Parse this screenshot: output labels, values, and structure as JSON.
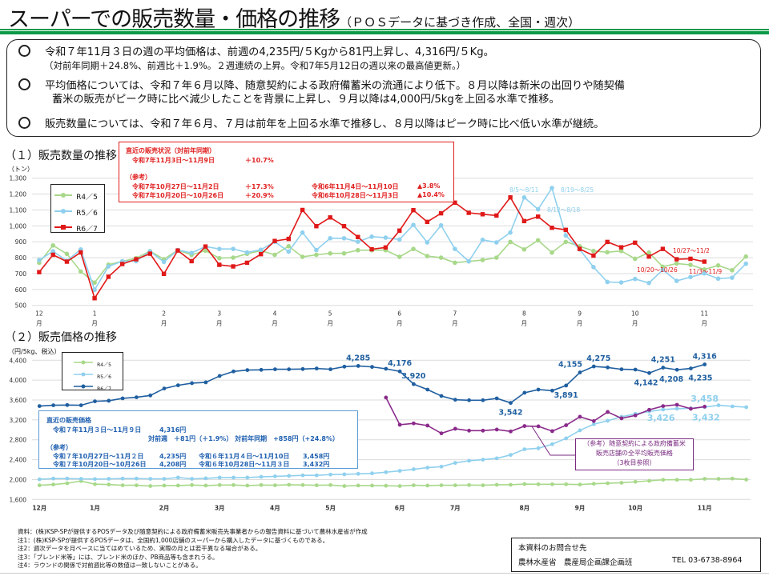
{
  "header": {
    "title": "スーパーでの販売数量・価格の推移",
    "subtitle": "（ＰＯＳデータに基づき作成、全国・週次）",
    "accent_color": "#0b9a48"
  },
  "summary": {
    "bullets": [
      {
        "lines": [
          "令和７年11月３日の週の平均価格は、前週の4,235円/５Kgから81円上昇し、4,316円/５Kg。",
          "（対前年同期＋24.8%、前週比＋1.9%。２週連続の上昇。令和7年5月12日の週以来の最高値更新。）"
        ]
      },
      {
        "lines": [
          "平均価格については、令和７年６月以降、随意契約による政府備蓄米の流通により低下。８月以降は新米の出回りや随契備",
          "蓄米の販売がピーク時に比べ減少したことを背景に上昇し、９月以降は4,000円/5kgを上回る水準で推移。"
        ]
      },
      {
        "lines": [
          "販売数量については、令和７年６月、７月は前年を上回る水準で推移し、８月以降はピーク時に比べ低い水準が継続。"
        ]
      }
    ]
  },
  "section1": {
    "heading": "（１）販売数量の推移",
    "unit": "（トン）",
    "status_box": {
      "title": "直近の販売状況（対前年同期）",
      "latest_period": "令和7年11月3日～11月9日",
      "latest_value": "＋10.7%",
      "ref_label": "（参考）",
      "refs": [
        {
          "period": "令和7年10月27日～11月2日",
          "value": "＋17.3%",
          "prev_period": "令和6年11月4日～11月10日",
          "prev_value": "▲3.8%"
        },
        {
          "period": "令和7年10月20日～10月26日",
          "value": "＋20.9%",
          "prev_period": "令和6年10月28日～11月3日",
          "prev_value": "▲10.4%"
        }
      ]
    }
  },
  "section2": {
    "heading": "（２）販売価格の推移",
    "unit": "（円/5kg、税込）",
    "price_box": {
      "title": "直近の販売価格",
      "latest_period": "令和７年11月３日～11月９日",
      "latest_value": "4,316円",
      "change": "対前週　＋81円（＋1.9%）  対前年同期　+858円（+24.8%）",
      "ref_label": "（参考）",
      "refs": [
        {
          "period": "令和７年10月27日～11月２日",
          "value": "4,235円",
          "prev_period": "令和６年11月４日～11月10日",
          "prev_value": "3,458円"
        },
        {
          "period": "令和７年10月20日～10月26日",
          "value": "4,208円",
          "prev_period": "令和６年10月28日～11月３日",
          "prev_value": "3,432円"
        }
      ]
    },
    "stockpile_note": [
      "（参考）随意契約による政府備蓄米",
      "販売店舗の全平均販売価格",
      "（3枚目参照）"
    ]
  },
  "chart_data": [
    {
      "type": "line",
      "ylabel": "（トン）",
      "ylim": [
        500,
        1300
      ],
      "yticks": [
        500,
        600,
        700,
        800,
        900,
        1000,
        1100,
        1200,
        1300
      ],
      "grid": true,
      "legend_position": "top-left",
      "month_ticks": [
        {
          "index": 0,
          "label": "12月"
        },
        {
          "index": 4,
          "label": "1月"
        },
        {
          "index": 9,
          "label": "2月"
        },
        {
          "index": 13,
          "label": "3月"
        },
        {
          "index": 17,
          "label": "4月"
        },
        {
          "index": 21,
          "label": "5月"
        },
        {
          "index": 26,
          "label": "6月"
        },
        {
          "index": 30,
          "label": "7月"
        },
        {
          "index": 35,
          "label": "8月"
        },
        {
          "index": 39,
          "label": "9月"
        },
        {
          "index": 43,
          "label": "10月"
        },
        {
          "index": 48,
          "label": "11月"
        }
      ],
      "series": [
        {
          "name": "R4／5",
          "color": "#a8d88a",
          "marker": "circle",
          "start": 0,
          "values": [
            768,
            877,
            824,
            713,
            643,
            756,
            777,
            797,
            841,
            790,
            847,
            818,
            844,
            797,
            800,
            824,
            844,
            818,
            872,
            805,
            818,
            827,
            827,
            847,
            847,
            847,
            805,
            855,
            810,
            800,
            768,
            777,
            785,
            800,
            899,
            852,
            909,
            832,
            899,
            872,
            842,
            834,
            842,
            793,
            832,
            743,
            763,
            755,
            726,
            751,
            721,
            807
          ]
        },
        {
          "name": "R5／6",
          "color": "#8fd0ee",
          "marker": "circle",
          "start": 0,
          "values": [
            785,
            840,
            780,
            852,
            598,
            745,
            778,
            778,
            840,
            773,
            848,
            830,
            870,
            855,
            855,
            833,
            850,
            900,
            838,
            958,
            848,
            922,
            922,
            900,
            932,
            926,
            914,
            1006,
            896,
            1003,
            855,
            777,
            912,
            896,
            958,
            1179,
            1104,
            1238,
            939,
            852,
            741,
            647,
            644,
            666,
            641,
            723,
            654,
            678,
            701,
            668,
            674,
            762
          ]
        },
        {
          "name": "R6／7",
          "color": "#e01818",
          "marker": "square",
          "start": 0,
          "values": [
            709,
            818,
            775,
            833,
            545,
            680,
            760,
            790,
            825,
            698,
            845,
            778,
            870,
            755,
            745,
            768,
            822,
            905,
            918,
            1100,
            998,
            1053,
            998,
            930,
            853,
            864,
            970,
            1099,
            1025,
            1079,
            1146,
            1082,
            1073,
            1065,
            1179,
            1030,
            1058,
            988,
            975,
            855,
            813,
            899,
            865,
            894,
            807,
            855,
            790,
            793,
            775
          ]
        }
      ],
      "annotations": [
        {
          "text": "8/5～8/11",
          "series": 1,
          "index": 35,
          "color": "#8fd0ee"
        },
        {
          "text": "8/12～8/18",
          "series": 1,
          "index": 36,
          "color": "#8fd0ee"
        },
        {
          "text": "8/19～8/25",
          "series": 1,
          "index": 37,
          "color": "#8fd0ee"
        },
        {
          "text": "10/20～10/26",
          "series": 2,
          "index": 46,
          "color": "#e01818"
        },
        {
          "text": "10/27～11/2",
          "series": 2,
          "index": 47,
          "color": "#e01818"
        },
        {
          "text": "11/3～11/9",
          "series": 2,
          "index": 48,
          "color": "#e01818"
        }
      ]
    },
    {
      "type": "line",
      "ylabel": "（円/5kg、税込）",
      "ylim": [
        1600,
        4400
      ],
      "yticks": [
        1600,
        2000,
        2400,
        2800,
        3200,
        3600,
        4000,
        4400
      ],
      "grid": true,
      "legend_position": "top-left",
      "month_ticks": [
        {
          "index": 0,
          "label": "12月"
        },
        {
          "index": 4,
          "label": "1月"
        },
        {
          "index": 9,
          "label": "2月"
        },
        {
          "index": 13,
          "label": "3月"
        },
        {
          "index": 17,
          "label": "4月"
        },
        {
          "index": 21,
          "label": "5月"
        },
        {
          "index": 26,
          "label": "6月"
        },
        {
          "index": 30,
          "label": "7月"
        },
        {
          "index": 35,
          "label": "8月"
        },
        {
          "index": 39,
          "label": "9月"
        },
        {
          "index": 43,
          "label": "10月"
        },
        {
          "index": 48,
          "label": "11月"
        }
      ],
      "series": [
        {
          "name": "R4／5",
          "color": "#a8d88a",
          "marker": "circle",
          "start": 0,
          "values": [
            1885,
            1900,
            1925,
            1970,
            1907,
            1900,
            1885,
            1885,
            1870,
            1880,
            1880,
            1890,
            1880,
            1890,
            1890,
            1880,
            1890,
            1885,
            1895,
            1890,
            1885,
            1890,
            1870,
            1880,
            1880,
            1875,
            1870,
            1885,
            1880,
            1885,
            1885,
            1890,
            1885,
            1895,
            1895,
            1910,
            1905,
            1905,
            1905,
            1900,
            1915,
            1925,
            1935,
            1955,
            1975,
            1995,
            1995,
            1995,
            2015,
            2015,
            2020,
            2000
          ]
        },
        {
          "name": "R5／6",
          "color": "#8fd0ee",
          "marker": "circle",
          "start": 0,
          "values": [
            2005,
            2020,
            2020,
            2015,
            2010,
            2015,
            2020,
            2020,
            2015,
            2015,
            2040,
            2015,
            2025,
            2040,
            2040,
            2040,
            2055,
            2065,
            2075,
            2085,
            2085,
            2100,
            2105,
            2115,
            2125,
            2148,
            2175,
            2207,
            2240,
            2260,
            2335,
            2378,
            2400,
            2427,
            2496,
            2609,
            2630,
            2711,
            2829,
            2990,
            3113,
            3183,
            3263,
            3322,
            3370,
            3408,
            3426,
            3432,
            3458,
            3494,
            3472,
            3456
          ]
        },
        {
          "name": "R6／7",
          "color": "#1f5fa0",
          "marker": "circle",
          "start": 0,
          "values": [
            3478,
            3494,
            3499,
            3494,
            3574,
            3585,
            3633,
            3655,
            3692,
            3832,
            3896,
            3939,
            3955,
            4084,
            4175,
            4202,
            4207,
            4218,
            4218,
            4223,
            4234,
            4218,
            4271,
            4285,
            4266,
            4228,
            4176,
            3920,
            3810,
            3681,
            3606,
            3596,
            3596,
            3633,
            3542,
            3746,
            3810,
            3789,
            3891,
            4155,
            4275,
            4255,
            4218,
            4212,
            4142,
            4251,
            4208,
            4235,
            4316
          ]
        },
        {
          "color": "#8a2a8a",
          "marker": "circle",
          "start": 25,
          "values": [
            3650,
            3102,
            3130,
            3086,
            2930,
            3022,
            2984,
            2984,
            3006,
            2968,
            3076,
            3071,
            2974,
            3092,
            3263,
            3177,
            3360,
            3231,
            3290,
            3403,
            3478,
            3504,
            3424,
            3467
          ]
        }
      ],
      "data_labels": [
        {
          "series": 2,
          "index": 23,
          "text": "4,285",
          "pos": "above"
        },
        {
          "series": 2,
          "index": 26,
          "text": "4,176",
          "pos": "above"
        },
        {
          "series": 2,
          "index": 27,
          "text": "3,920",
          "pos": "above"
        },
        {
          "series": 2,
          "index": 34,
          "text": "3,542",
          "pos": "below"
        },
        {
          "series": 2,
          "index": 38,
          "text": "3,891",
          "pos": "below"
        },
        {
          "series": 2,
          "index": 39,
          "text": "4,155",
          "pos": "above"
        },
        {
          "series": 2,
          "index": 40,
          "text": "4,275",
          "pos": "above"
        },
        {
          "series": 2,
          "index": 44,
          "text": "4,142",
          "pos": "below"
        },
        {
          "series": 2,
          "index": 45,
          "text": "4,251",
          "pos": "above"
        },
        {
          "series": 2,
          "index": 46,
          "text": "4,208",
          "pos": "below"
        },
        {
          "series": 2,
          "index": 47,
          "text": "4,235",
          "pos": "below"
        },
        {
          "series": 2,
          "index": 48,
          "text": "4,316",
          "pos": "above"
        },
        {
          "series": 1,
          "index": 46,
          "text": "3,426",
          "pos": "below"
        },
        {
          "series": 1,
          "index": 47,
          "text": "3,432",
          "pos": "below"
        },
        {
          "series": 1,
          "index": 48,
          "text": "3,458",
          "pos": "above"
        }
      ]
    }
  ],
  "footer": {
    "notes": [
      "資料：(株)KSP-SPが提供するPOSデータ及び随意契約による政府備蓄米販売先事業者からの報告資料に基づいて農林水産省が作成",
      "注1：(株)KSP-SPが提供するPOSデータは、全国約1,000店舗のスーパーから購入したデータに基づくものである。",
      "注2：週次データを月ベースに当てはめているため、実際の月とは若干異なる場合がある。",
      "注3：「ブレンド米等」には、ブレンド米のほか、PB商品等も含まれうる。",
      "注4：ラウンドの関係で対前週比等の数値は一致しないことがある。"
    ],
    "contact": {
      "title": "本資料のお問合せ先",
      "org": "農林水産省　農産局企画課企画班",
      "tel": "TEL 03-6738-8964"
    }
  }
}
